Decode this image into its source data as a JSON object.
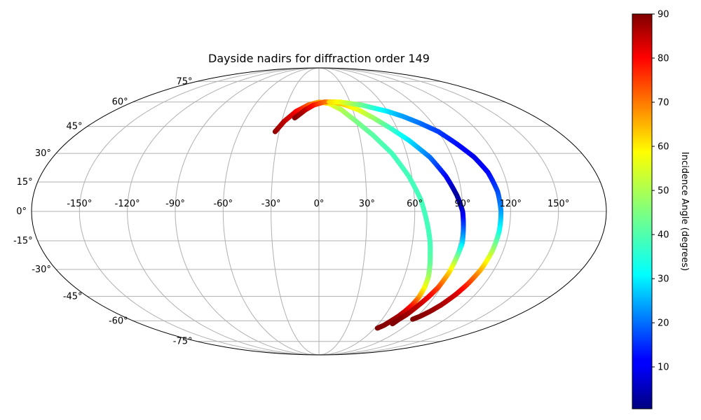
{
  "chart_data": {
    "type": "scatter",
    "projection": "mollweide",
    "title": "Dayside nadirs for diffraction order 149",
    "grid": true,
    "longitude_ticks": [
      -150,
      -120,
      -90,
      -60,
      -30,
      0,
      30,
      60,
      90,
      120,
      150
    ],
    "longitude_labels": [
      "-150°",
      "-120°",
      "-90°",
      "-60°",
      "-30°",
      "0°",
      "30°",
      "60°",
      "90°",
      "120°",
      "150°"
    ],
    "latitude_ticks": [
      -75,
      -60,
      -45,
      -30,
      -15,
      0,
      15,
      30,
      45,
      60,
      75
    ],
    "latitude_labels": [
      "-75°",
      "-60°",
      "-45°",
      "-30°",
      "-15°",
      "0°",
      "15°",
      "30°",
      "45°",
      "60°",
      "75°"
    ],
    "colorbar": {
      "label": "Incidence Angle (degrees)",
      "colormap": "jet",
      "range": [
        0.5,
        90
      ],
      "ticks": [
        10,
        20,
        30,
        40,
        50,
        60,
        70,
        80,
        90
      ],
      "tick_labels": [
        "10",
        "20",
        "30",
        "40",
        "50",
        "60",
        "70",
        "80",
        "90"
      ]
    },
    "series": [
      {
        "lon": [
          -33,
          -28,
          -20,
          -10,
          0,
          10,
          20,
          30,
          40,
          50,
          58,
          64,
          68,
          71,
          73,
          75,
          77,
          78,
          78,
          77,
          75,
          73,
          70,
          67,
          63
        ],
        "lat": [
          42,
          48,
          54,
          58,
          60,
          59,
          55,
          48,
          40,
          30,
          18,
          6,
          -6,
          -15,
          -22,
          -28,
          -34,
          -40,
          -46,
          -50,
          -54,
          -57,
          -60,
          -63,
          -65
        ],
        "incidence": [
          88,
          85,
          80,
          72,
          64,
          57,
          50,
          45,
          42,
          40,
          40,
          40,
          40,
          40,
          41,
          43,
          48,
          55,
          65,
          75,
          82,
          86,
          88,
          89,
          90
        ]
      },
      {
        "lon": [
          -20,
          -12,
          -5,
          5,
          15,
          25,
          35,
          45,
          55,
          65,
          75,
          82,
          87,
          90,
          91,
          92,
          91,
          90,
          88,
          85,
          82,
          79,
          76,
          74
        ],
        "lat": [
          50,
          55,
          58,
          60,
          60,
          58,
          55,
          50,
          44,
          37,
          28,
          18,
          8,
          0,
          -8,
          -16,
          -24,
          -32,
          -40,
          -46,
          -51,
          -56,
          -59,
          -62
        ],
        "incidence": [
          90,
          85,
          78,
          70,
          64,
          60,
          55,
          48,
          40,
          32,
          22,
          12,
          3,
          8,
          18,
          30,
          45,
          60,
          72,
          80,
          84,
          87,
          89,
          90
        ]
      },
      {
        "lon": [
          10,
          20,
          30,
          40,
          50,
          60,
          70,
          80,
          90,
          98,
          105,
          110,
          113,
          114,
          114,
          113,
          111,
          108,
          105,
          101,
          97,
          93,
          89
        ],
        "lat": [
          60,
          60,
          59,
          58,
          56,
          54,
          51,
          47,
          42,
          35,
          28,
          20,
          10,
          0,
          -10,
          -20,
          -30,
          -38,
          -44,
          -50,
          -54,
          -57,
          -59
        ],
        "incidence": [
          60,
          56,
          50,
          44,
          38,
          32,
          26,
          22,
          17,
          13,
          10,
          12,
          18,
          25,
          35,
          48,
          62,
          74,
          82,
          86,
          88,
          89,
          90
        ]
      }
    ]
  }
}
